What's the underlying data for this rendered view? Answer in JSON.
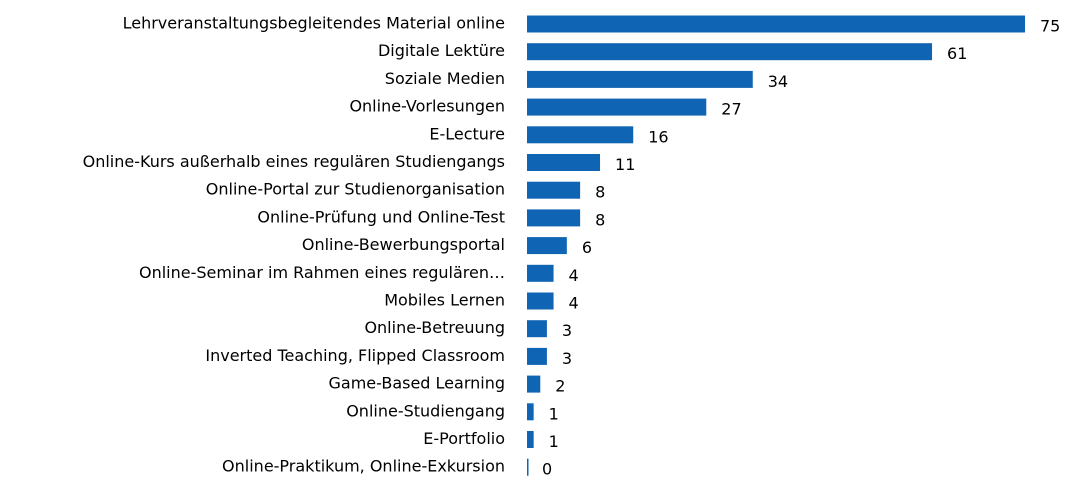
{
  "chart_data": {
    "type": "hbar",
    "categories": [
      "Lehrveranstaltungsbegleitendes Material online",
      "Digitale Lektüre",
      "Soziale Medien",
      "Online-Vorlesungen",
      "E-Lecture",
      "Online-Kurs außerhalb eines regulären Studiengangs",
      "Online-Portal zur Studienorganisation",
      "Online-Prüfung und Online-Test",
      "Online-Bewerbungsportal",
      "Online-Seminar im Rahmen eines regulären…",
      "Mobiles Lernen",
      "Online-Betreuung",
      "Inverted Teaching, Flipped Classroom",
      "Game-Based Learning",
      "Online-Studiengang",
      "E-Portfolio",
      "Online-Praktikum, Online-Exkursion"
    ],
    "values": [
      75,
      61,
      34,
      27,
      16,
      11,
      8,
      8,
      6,
      4,
      4,
      3,
      3,
      2,
      1,
      1,
      0
    ],
    "color": "#0f64b4",
    "xlim": [
      0,
      75
    ]
  }
}
